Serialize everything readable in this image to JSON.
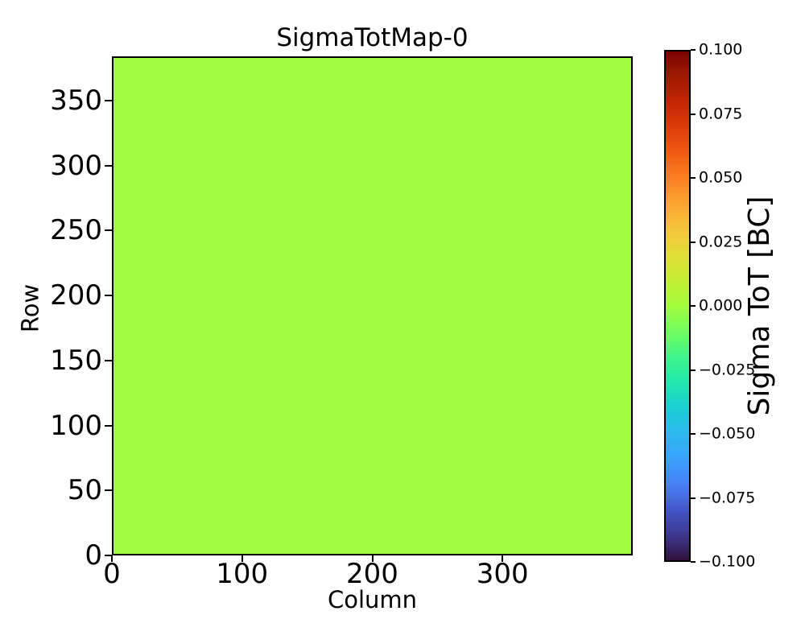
{
  "figure": {
    "background": "#ffffff"
  },
  "chart_data": {
    "type": "heatmap",
    "title": "SigmaTotMap-0",
    "xlabel": "Column",
    "ylabel": "Row",
    "xlim": [
      0,
      400
    ],
    "ylim": [
      0,
      384
    ],
    "xticks": [
      0,
      100,
      200,
      300
    ],
    "yticks": [
      0,
      50,
      100,
      150,
      200,
      250,
      300,
      350
    ],
    "grid": false,
    "legend": false,
    "n_columns": 400,
    "n_rows": 384,
    "uniform_value": 0.0,
    "zero_color": "#a2fa3f",
    "colorbar": {
      "label": "Sigma ToT [BC]",
      "clim": [
        -0.1,
        0.1
      ],
      "colormap": "turbo",
      "position": "right",
      "ticks": [
        {
          "value": 0.1,
          "label": "0.100"
        },
        {
          "value": 0.075,
          "label": "0.075"
        },
        {
          "value": 0.05,
          "label": "0.050"
        },
        {
          "value": 0.025,
          "label": "0.025"
        },
        {
          "value": 0.0,
          "label": "0.000"
        },
        {
          "value": -0.025,
          "label": "−0.025"
        },
        {
          "value": -0.05,
          "label": "−0.050"
        },
        {
          "value": -0.075,
          "label": "−0.075"
        },
        {
          "value": -0.1,
          "label": "−0.100"
        }
      ],
      "gradient_stops_bottom_to_top": [
        "#30123b",
        "#3d3790",
        "#4456c8",
        "#4681f7",
        "#3aa2fd",
        "#2cb9ee",
        "#1ccfd5",
        "#20e9ad",
        "#3ff58b",
        "#71fd5f",
        "#a3fc3d",
        "#c5ef34",
        "#e2dd37",
        "#f5c63a",
        "#fda631",
        "#fb8022",
        "#f05b12",
        "#dd3d08",
        "#c42503",
        "#a01a02",
        "#7a0403"
      ]
    }
  }
}
